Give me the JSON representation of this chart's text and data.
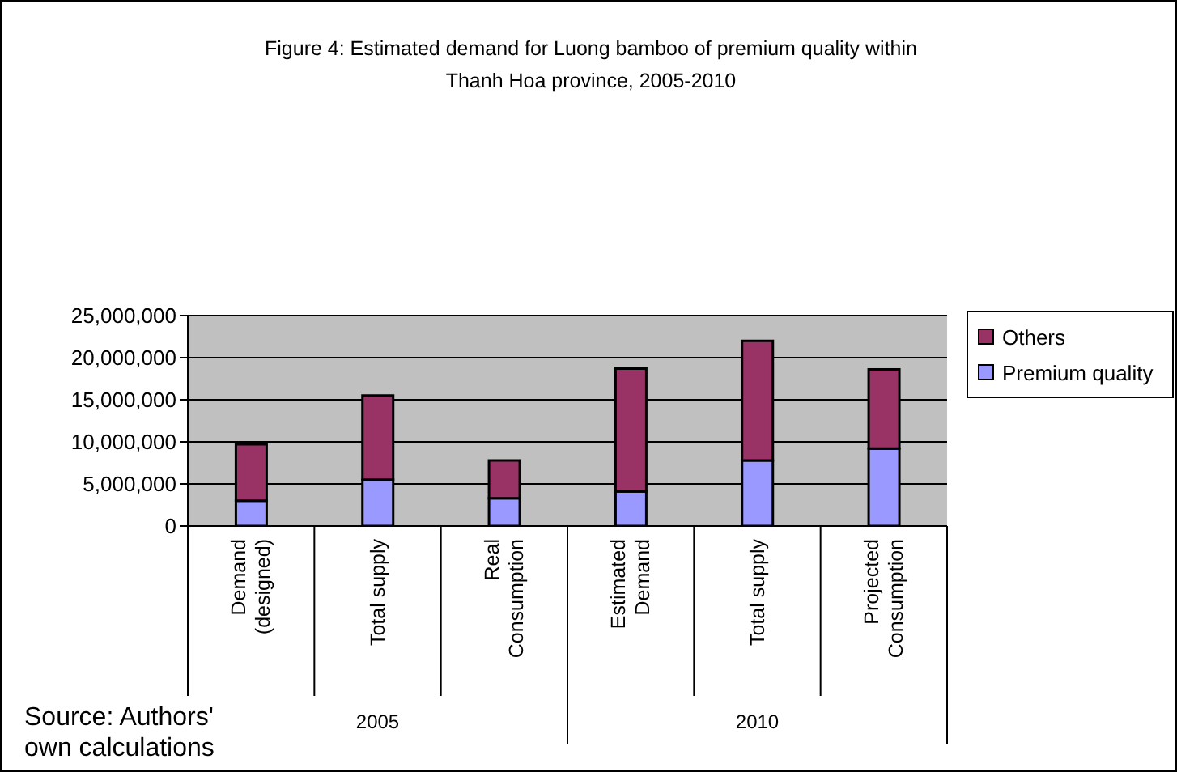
{
  "chart_data": {
    "type": "bar",
    "title": "Figure 4: Estimated demand for Luong bamboo of premium quality within Thanh Hoa province, 2005-2010",
    "categories": [
      "Demand (designed)",
      "Total supply",
      "Real Consumption",
      "Estimated Demand",
      "Total supply",
      "Projected Consumption"
    ],
    "series": [
      {
        "name": "Premium quality",
        "color": "#9999ff",
        "values": [
          3000000,
          5500000,
          3300000,
          4100000,
          7800000,
          9200000
        ]
      },
      {
        "name": "Others",
        "color": "#993366",
        "values": [
          6700000,
          10000000,
          4500000,
          14600000,
          14200000,
          9400000
        ]
      }
    ],
    "stacked": true,
    "ylim": [
      0,
      25000000
    ],
    "yticks": [
      {
        "value": 0,
        "label": "0"
      },
      {
        "value": 5000000,
        "label": "5,000,000"
      },
      {
        "value": 10000000,
        "label": "10,000,000"
      },
      {
        "value": 15000000,
        "label": "15,000,000"
      },
      {
        "value": 20000000,
        "label": "20,000,000"
      },
      {
        "value": 25000000,
        "label": "25,000,000"
      }
    ],
    "grid": "y",
    "legend": "right",
    "annotations": [
      "2005",
      "2010",
      "Source: Authors' own calculations"
    ]
  }
}
